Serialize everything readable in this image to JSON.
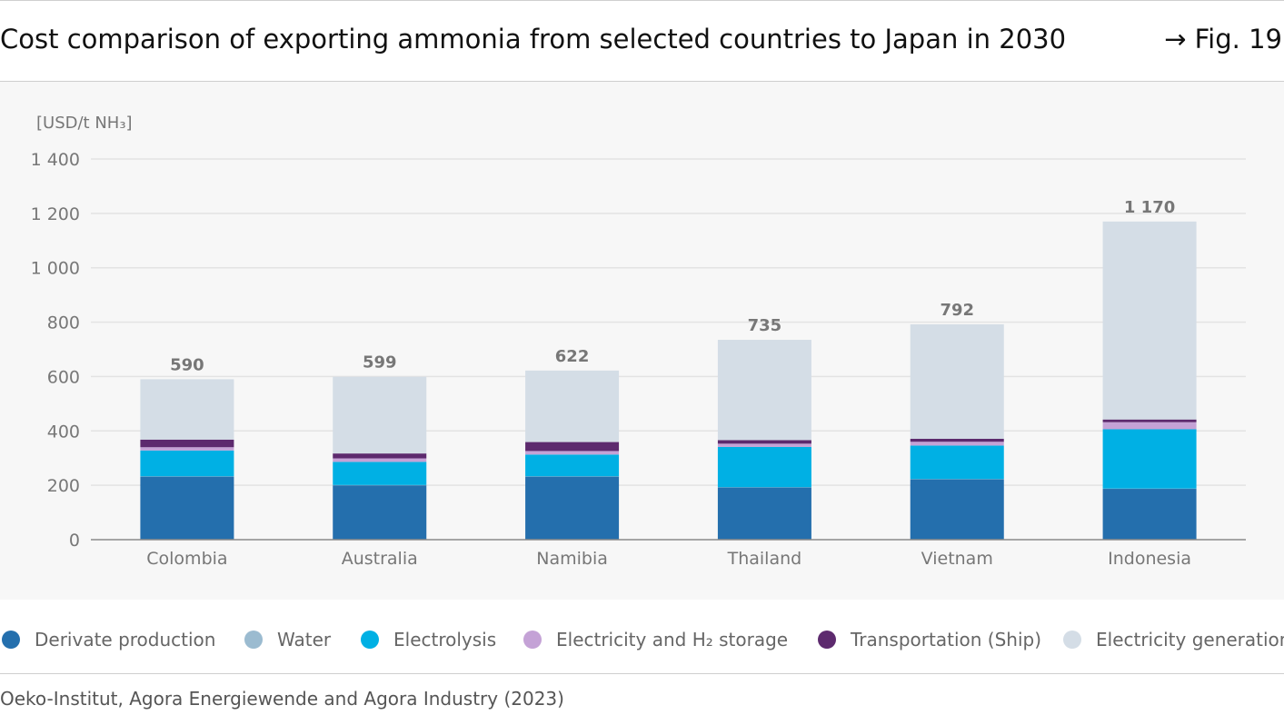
{
  "header": {
    "title": "Cost comparison of exporting ammonia from selected countries to Japan in 2030",
    "figure_ref": "→ Fig. 19"
  },
  "chart_data": {
    "type": "bar",
    "stacked": true,
    "unit_label": "[USD/t NH₃]",
    "ylim": [
      0,
      1400
    ],
    "yticks": [
      0,
      200,
      400,
      600,
      800,
      1000,
      1200,
      1400
    ],
    "ytick_labels": [
      "0",
      "200",
      "400",
      "600",
      "800",
      "1 000",
      "1 200",
      "1 400"
    ],
    "grid": true,
    "legend_position": "bottom",
    "categories": [
      "Colombia",
      "Australia",
      "Namibia",
      "Thailand",
      "Vietnam",
      "Indonesia"
    ],
    "totals": [
      590,
      599,
      622,
      735,
      792,
      1170
    ],
    "total_labels": [
      "590",
      "599",
      "622",
      "735",
      "792",
      "1 170"
    ],
    "series": [
      {
        "name": "Derivate production",
        "color": "#246fad",
        "values": [
          232,
          200,
          232,
          192,
          222,
          187
        ]
      },
      {
        "name": "Water",
        "color": "#9bbbd0",
        "values": [
          1,
          1,
          1,
          1,
          1,
          1
        ]
      },
      {
        "name": "Electrolysis",
        "color": "#00b0e4",
        "values": [
          95,
          85,
          80,
          148,
          123,
          218
        ]
      },
      {
        "name": "Electricity and H₂ storage",
        "color": "#c4a2d6",
        "values": [
          12,
          13,
          13,
          12,
          14,
          26
        ]
      },
      {
        "name": "Transportation (Ship)",
        "color": "#5d2a6e",
        "values": [
          28,
          18,
          33,
          13,
          11,
          10
        ]
      },
      {
        "name": "Electricity generation",
        "color": "#d4dde6",
        "values": [
          222,
          282,
          263,
          369,
          421,
          728
        ]
      }
    ]
  },
  "source": "Oeko-Institut, Agora Energiewende and Agora Industry (2023)"
}
